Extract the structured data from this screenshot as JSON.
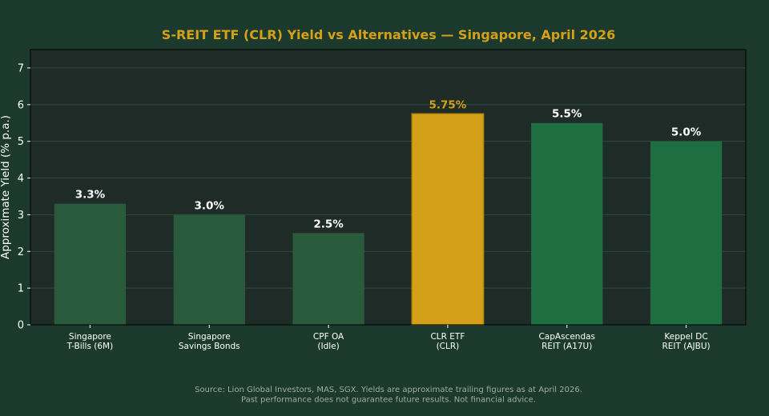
{
  "chart_data": {
    "type": "bar",
    "title": "S-REIT ETF (CLR) Yield vs Alternatives — Singapore, April 2026",
    "xlabel": "",
    "ylabel": "Approximate Yield (% p.a.)",
    "ylim": [
      0,
      7.5
    ],
    "yticks": [
      0,
      1,
      2,
      3,
      4,
      5,
      6,
      7
    ],
    "grid": true,
    "categories": [
      [
        "Singapore",
        "T-Bills (6M)"
      ],
      [
        "Singapore",
        "Savings Bonds"
      ],
      [
        "CPF OA",
        "(Idle)"
      ],
      [
        "CLR ETF",
        "(CLR)"
      ],
      [
        "CapAscendas",
        "REIT (A17U)"
      ],
      [
        "Keppel DC",
        "REIT (AJBU)"
      ]
    ],
    "values": [
      3.3,
      3.0,
      2.5,
      5.75,
      5.5,
      5.0
    ],
    "data_labels": [
      "3.3%",
      "3.0%",
      "2.5%",
      "5.75%",
      "5.5%",
      "5.0%"
    ],
    "bar_colors": [
      "#2a5a3c",
      "#2a5a3c",
      "#2a5a3c",
      "#d4a017",
      "#1e6e42",
      "#1e6e42"
    ],
    "label_colors": [
      "#ffffff",
      "#ffffff",
      "#ffffff",
      "#d4a017",
      "#ffffff",
      "#ffffff"
    ],
    "highlight_index": 3
  },
  "source_note": [
    "Source: Lion Global Investors, MAS, SGX. Yields are approximate trailing figures as at April 2026.",
    "Past performance does not guarantee future results. Not financial advice."
  ],
  "colors": {
    "background": "#1b3a2d",
    "plot_background": "#1f2b26",
    "title": "#d4a017",
    "text": "#ffffff",
    "grid": "#2e4a3c",
    "source": "#a0aaa4",
    "highlight_edge": "#b8860b"
  }
}
